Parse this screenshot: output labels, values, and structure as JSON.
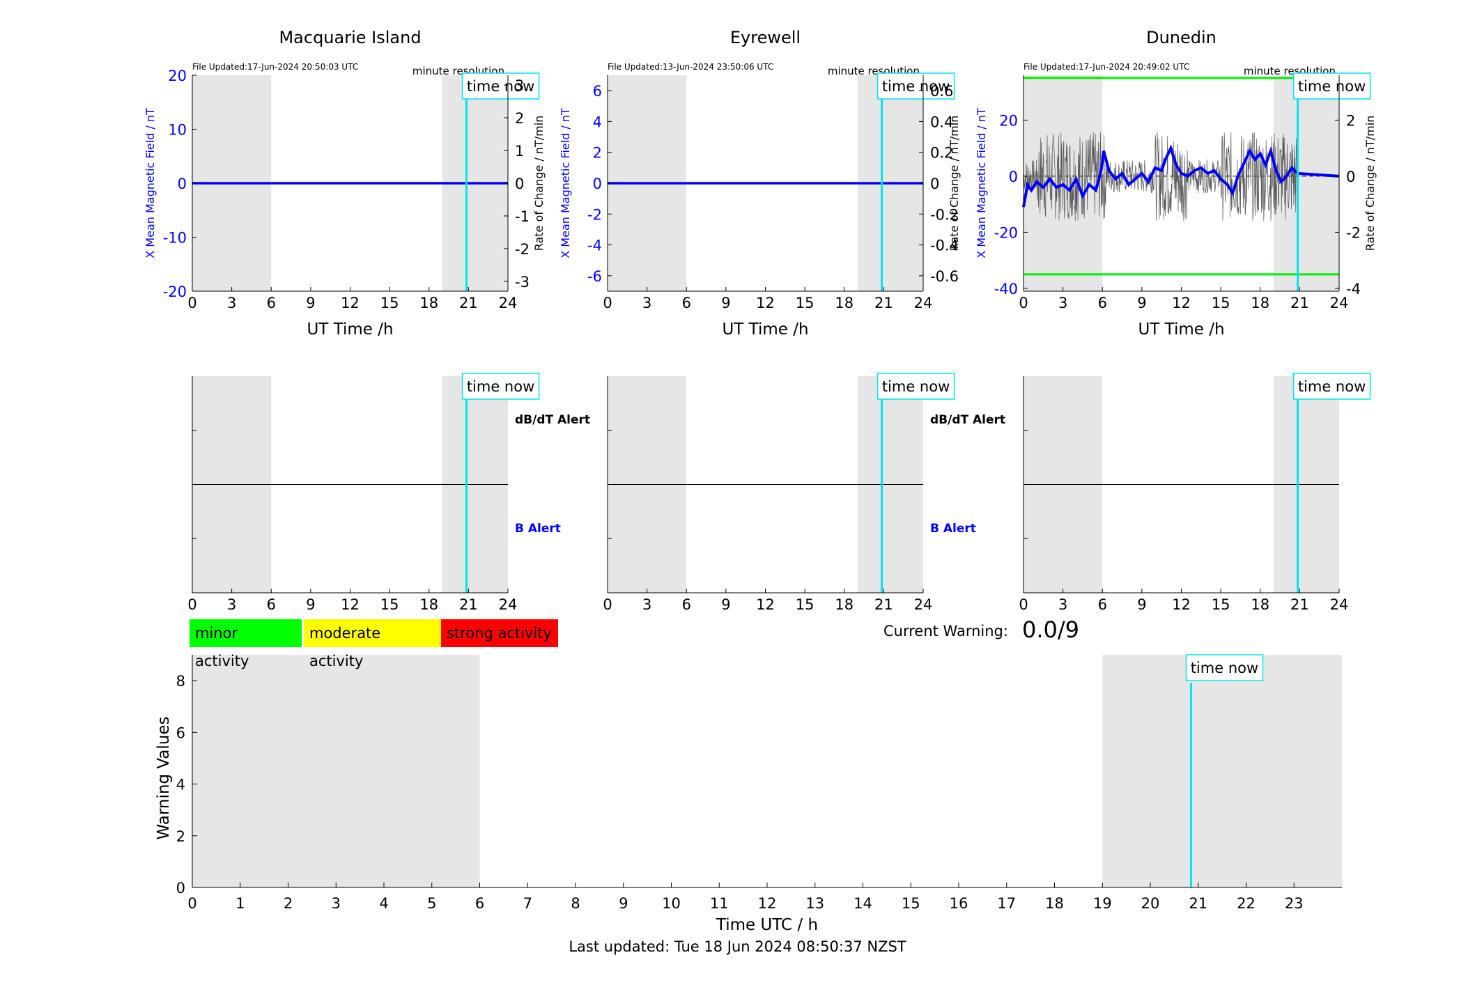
{
  "colors": {
    "mean_field": "#0000ff",
    "rate_of_change": "#555555",
    "time_now": "#00e5ee",
    "night_shade": "#e6e6e6",
    "threshold": "#00ee00",
    "minor": "#00ff00",
    "moderate": "#ffff00",
    "strong": "#ff0000",
    "dbdt_label": "#000000",
    "b_label": "#0000ff"
  },
  "stations": [
    {
      "title": "Macquarie Island",
      "file_updated": "File Updated:17-Jun-2024 20:50:03 UTC",
      "resolution": "minute resolution",
      "time_now_label": "time now",
      "xlabel": "UT Time /h",
      "ylabel_left": "X Mean Magnetic Field / nT",
      "ylabel_right": "Rate of Change / nT/min",
      "left_ticks": [
        "20",
        "10",
        "0",
        "-10",
        "-20"
      ],
      "right_ticks": [
        "3",
        "2",
        "1",
        "0",
        "-1",
        "-2",
        "-3"
      ],
      "x_ticks": [
        "0",
        "3",
        "6",
        "9",
        "12",
        "15",
        "18",
        "21",
        "24"
      ],
      "alert_dbdt_label": "dB/dT Alert",
      "alert_b_label": "B Alert"
    },
    {
      "title": "Eyrewell",
      "file_updated": "File Updated:13-Jun-2024 23:50:06 UTC",
      "resolution": "minute resolution",
      "time_now_label": "time now",
      "xlabel": "UT Time /h",
      "ylabel_left": "X Mean Magnetic Field / nT",
      "ylabel_right": "Rate of Change / nT/min",
      "left_ticks": [
        "6",
        "4",
        "2",
        "0",
        "-2",
        "-4",
        "-6"
      ],
      "right_ticks": [
        "0.6",
        "0.4",
        "0.2",
        "0",
        "-0.2",
        "-0.4",
        "-0.6"
      ],
      "x_ticks": [
        "0",
        "3",
        "6",
        "9",
        "12",
        "15",
        "18",
        "21",
        "24"
      ],
      "alert_dbdt_label": "dB/dT Alert",
      "alert_b_label": "B Alert"
    },
    {
      "title": "Dunedin",
      "file_updated": "File Updated:17-Jun-2024 20:49:02 UTC",
      "resolution": "minute resolution",
      "time_now_label": "time now",
      "xlabel": "UT Time /h",
      "ylabel_left": "X Mean Magnetic Field / nT",
      "ylabel_right": "Rate of Change / nT/min",
      "left_ticks": [
        "20",
        "0",
        "-20",
        "-40"
      ],
      "right_ticks": [
        "2",
        "0",
        "-2",
        "-4"
      ],
      "x_ticks": [
        "0",
        "3",
        "6",
        "9",
        "12",
        "15",
        "18",
        "21",
        "24"
      ],
      "alert_dbdt_label": "",
      "alert_b_label": ""
    }
  ],
  "legend": {
    "minor": "minor activity",
    "moderate": "moderate activity",
    "strong": "strong activity"
  },
  "current_warning": {
    "label": "Current Warning:",
    "value": "0.0/9"
  },
  "warning_panel": {
    "ylabel": "Warning Values",
    "xlabel": "Time UTC / h",
    "y_ticks": [
      "0",
      "2",
      "4",
      "6",
      "8"
    ],
    "x_ticks": [
      "0",
      "1",
      "2",
      "3",
      "4",
      "5",
      "6",
      "7",
      "8",
      "9",
      "10",
      "11",
      "12",
      "13",
      "14",
      "15",
      "16",
      "17",
      "18",
      "19",
      "20",
      "21",
      "22",
      "23"
    ],
    "time_now_label": "time now"
  },
  "footer": "Last updated: Tue 18 Jun 2024 08:50:37 NZST",
  "chart_data": [
    {
      "type": "line",
      "title": "Macquarie Island",
      "xlabel": "UT Time /h",
      "ylabel": "X Mean Magnetic Field / nT",
      "y2label": "Rate of Change / nT/min",
      "xlim": [
        0,
        24
      ],
      "ylim": [
        -20,
        20
      ],
      "y2lim": [
        -3.3,
        3.3
      ],
      "shaded_x_ranges": [
        [
          0,
          6
        ],
        [
          19,
          24
        ]
      ],
      "time_now": 20.85,
      "series": [
        {
          "x": [
            0,
            24
          ],
          "y": [
            0,
            0
          ]
        }
      ]
    },
    {
      "type": "line",
      "title": "Eyrewell",
      "xlabel": "UT Time /h",
      "ylabel": "X Mean Magnetic Field / nT",
      "y2label": "Rate of Change / nT/min",
      "xlim": [
        0,
        24
      ],
      "ylim": [
        -7,
        7
      ],
      "y2lim": [
        -0.7,
        0.7
      ],
      "shaded_x_ranges": [
        [
          0,
          6
        ],
        [
          19,
          24
        ]
      ],
      "time_now": 20.85,
      "series": [
        {
          "x": [
            0,
            24
          ],
          "y": [
            0,
            0
          ]
        }
      ]
    },
    {
      "type": "line",
      "title": "Dunedin",
      "xlabel": "UT Time /h",
      "ylabel": "X Mean Magnetic Field / nT",
      "y2label": "Rate of Change / nT/min",
      "xlim": [
        0,
        24
      ],
      "ylim": [
        -41,
        36
      ],
      "y2lim": [
        -4.1,
        3.6
      ],
      "shaded_x_ranges": [
        [
          0,
          6
        ],
        [
          19,
          24
        ]
      ],
      "time_now": 20.85,
      "thresholds": [
        35,
        -35
      ],
      "series": [
        {
          "x": [
            0,
            0.3,
            0.6,
            1.0,
            1.5,
            2.0,
            2.5,
            3.0,
            3.5,
            4.0,
            4.5,
            5.0,
            5.5,
            5.9,
            6.1,
            6.5,
            7.0,
            7.5,
            8.0,
            8.5,
            9.0,
            9.5,
            10.0,
            10.5,
            10.8,
            11.2,
            11.6,
            12.0,
            12.5,
            13.0,
            13.5,
            14.0,
            14.5,
            15.0,
            15.5,
            15.9,
            16.3,
            16.8,
            17.2,
            17.6,
            18.0,
            18.4,
            18.8,
            19.2,
            19.6,
            20.0,
            20.4,
            20.85,
            24
          ],
          "y": [
            -11,
            -3,
            -5,
            -2,
            -4,
            -1,
            -4,
            -3,
            -5,
            -1,
            -7,
            -3,
            -5,
            2,
            9,
            2,
            -1,
            1,
            -3,
            -1,
            1,
            -2,
            3,
            2,
            6,
            10,
            4,
            1,
            0,
            2,
            3,
            1,
            2,
            -1,
            -3,
            -6,
            0,
            5,
            9,
            6,
            8,
            4,
            9,
            2,
            -2,
            0,
            3,
            1,
            0
          ]
        }
      ]
    },
    {
      "type": "line",
      "xlabel": "Time UTC / h",
      "ylabel": "Warning Values",
      "xlim": [
        0,
        24
      ],
      "ylim": [
        0,
        9
      ],
      "shaded_x_ranges": [
        [
          0,
          6
        ],
        [
          19,
          24
        ]
      ],
      "time_now": 20.85,
      "series": []
    }
  ]
}
